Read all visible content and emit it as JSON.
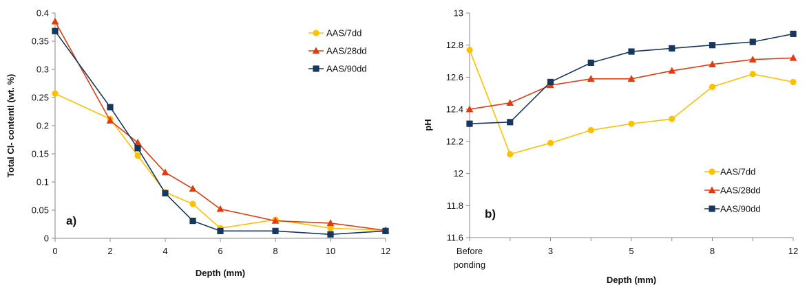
{
  "chart_data": [
    {
      "type": "line",
      "panel_label": "a)",
      "xlabel": "Depth (mm)",
      "ylabel": "Total Cl- contentl (wt. %)",
      "xlim": [
        0,
        12
      ],
      "ylim": [
        0,
        0.4
      ],
      "x_ticks": [
        "0",
        "2",
        "4",
        "6",
        "8",
        "10",
        "12"
      ],
      "y_ticks": [
        "0",
        "0.05",
        "0.1",
        "0.15",
        "0.2",
        "0.25",
        "0.3",
        "0.35",
        "0.4"
      ],
      "grid": false,
      "legend_position": "top-right",
      "x": [
        0,
        2,
        3,
        4,
        5,
        6,
        8,
        10,
        12
      ],
      "series": [
        {
          "name": "AAS/7dd",
          "color": "#FFC000",
          "marker": "circle",
          "values": [
            0.257,
            0.212,
            0.147,
            0.082,
            0.061,
            0.018,
            0.033,
            0.018,
            0.014
          ]
        },
        {
          "name": "AAS/28dd",
          "color": "#E03C10",
          "marker": "triangle",
          "values": [
            0.385,
            0.209,
            0.17,
            0.117,
            0.088,
            0.052,
            0.031,
            0.027,
            0.014
          ]
        },
        {
          "name": "AAS/90dd",
          "color": "#17375E",
          "marker": "square",
          "values": [
            0.368,
            0.233,
            0.16,
            0.08,
            0.031,
            0.013,
            0.013,
            0.007,
            0.013
          ]
        }
      ]
    },
    {
      "type": "line",
      "panel_label": "b)",
      "xlabel": "Depth (mm)",
      "ylabel": "pH",
      "ylim": [
        11.6,
        13
      ],
      "x_categories": [
        "Before ponding",
        "",
        "3",
        "",
        "5",
        "",
        "8",
        "",
        "12"
      ],
      "y_ticks": [
        "11.6",
        "11.8",
        "12",
        "12.2",
        "12.4",
        "12.6",
        "12.8",
        "13"
      ],
      "grid": false,
      "legend_position": "bottom-right",
      "series": [
        {
          "name": "AAS/7dd",
          "color": "#FFC000",
          "marker": "circle",
          "values": [
            12.77,
            12.12,
            12.19,
            12.27,
            12.31,
            12.34,
            12.54,
            12.62,
            12.57
          ]
        },
        {
          "name": "AAS/28dd",
          "color": "#E03C10",
          "marker": "triangle",
          "values": [
            12.4,
            12.44,
            12.55,
            12.59,
            12.59,
            12.64,
            12.68,
            12.71,
            12.72
          ]
        },
        {
          "name": "AAS/90dd",
          "color": "#17375E",
          "marker": "square",
          "values": [
            12.31,
            12.32,
            12.57,
            12.69,
            12.76,
            12.78,
            12.8,
            12.82,
            12.87
          ]
        }
      ]
    }
  ]
}
